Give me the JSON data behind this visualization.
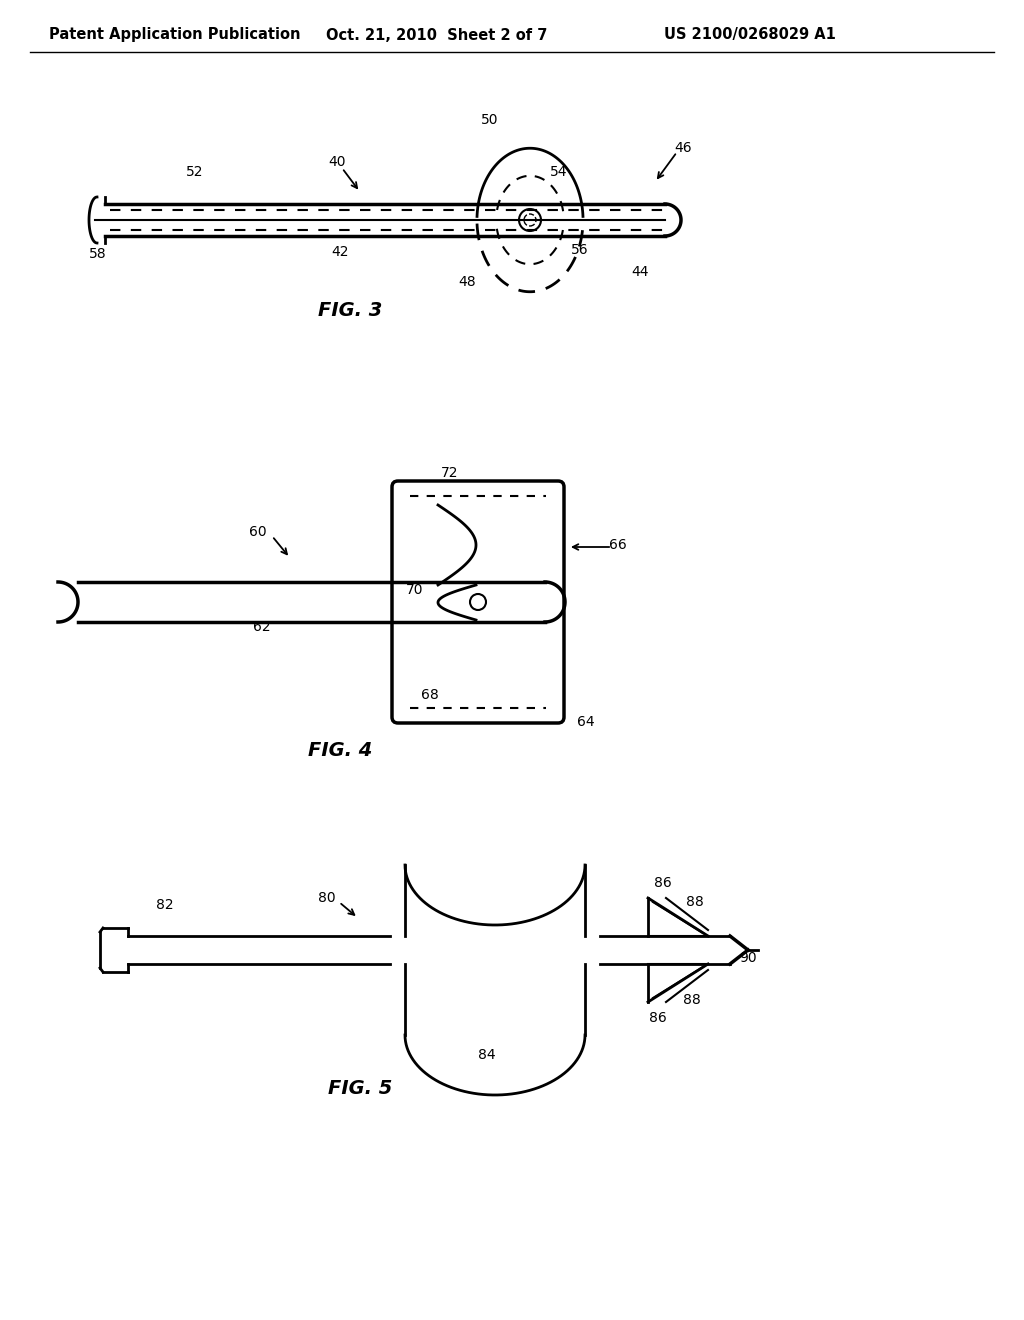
{
  "header_left": "Patent Application Publication",
  "header_mid": "Oct. 21, 2010  Sheet 2 of 7",
  "header_right": "US 2100/0268029 A1",
  "fig3_label": "FIG. 3",
  "fig4_label": "FIG. 4",
  "fig5_label": "FIG. 5",
  "bg_color": "#ffffff",
  "lc": "#000000"
}
